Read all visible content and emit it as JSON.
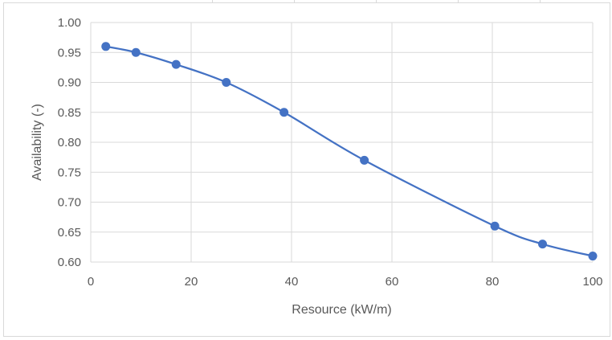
{
  "chart_data": {
    "type": "line",
    "title": "",
    "xlabel": "Resource (kW/m)",
    "ylabel": "Availability (-)",
    "xlim": [
      0,
      100
    ],
    "ylim": [
      0.6,
      1.0
    ],
    "x_ticks": [
      0,
      20,
      40,
      60,
      80,
      100
    ],
    "y_ticks": [
      0.6,
      0.65,
      0.7,
      0.75,
      0.8,
      0.85,
      0.9,
      0.95,
      1.0
    ],
    "grid": true,
    "legend": "none",
    "smooth": true,
    "series": [
      {
        "color": "#4472c4",
        "marker": "circle",
        "points": [
          [
            3,
            0.96
          ],
          [
            9,
            0.95
          ],
          [
            17,
            0.93
          ],
          [
            27,
            0.9
          ],
          [
            38.5,
            0.85
          ],
          [
            54.5,
            0.77
          ],
          [
            80.5,
            0.66
          ],
          [
            90,
            0.63
          ],
          [
            100,
            0.61
          ]
        ]
      }
    ]
  },
  "colors": {
    "line": "#4472c4",
    "grid": "#d9d9d9",
    "text": "#595959"
  }
}
